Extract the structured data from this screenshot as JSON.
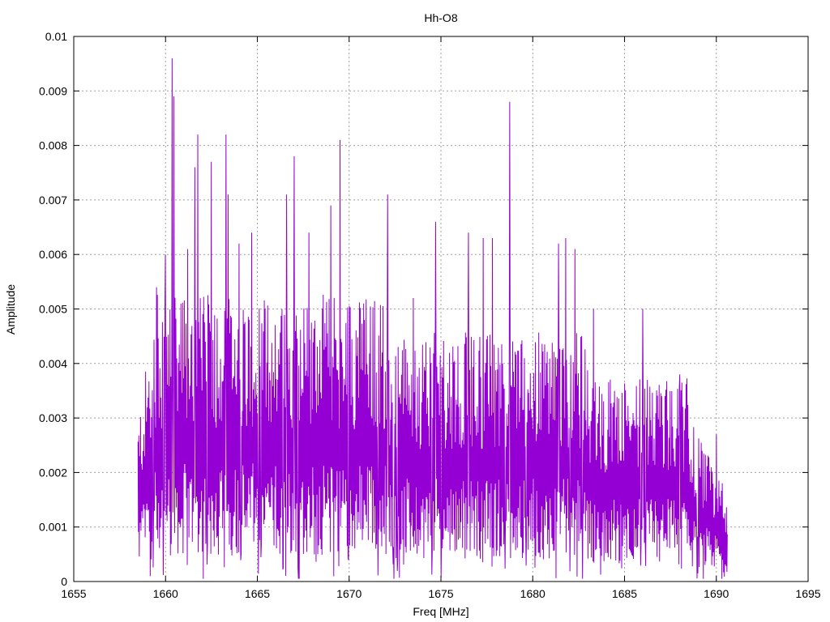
{
  "chart_data": {
    "type": "line",
    "title": "Hh-O8",
    "xlabel": "Freq [MHz]",
    "ylabel": "Amplitude",
    "xlim": [
      1655,
      1695
    ],
    "ylim": [
      0,
      0.01
    ],
    "x_ticks": [
      "1655",
      "1660",
      "1665",
      "1670",
      "1675",
      "1680",
      "1685",
      "1690",
      "1695"
    ],
    "y_ticks": [
      "0",
      "0.001",
      "0.002",
      "0.003",
      "0.004",
      "0.005",
      "0.006",
      "0.007",
      "0.008",
      "0.009",
      "0.01"
    ],
    "grid": true,
    "series": [
      {
        "color": "#9400d3",
        "x_range": [
          1658.5,
          1690.6
        ],
        "peaks": [
          {
            "x": 1658.6,
            "y": 0.0023
          },
          {
            "x": 1659.5,
            "y": 0.0054
          },
          {
            "x": 1660.0,
            "y": 0.006
          },
          {
            "x": 1660.35,
            "y": 0.0096
          },
          {
            "x": 1660.45,
            "y": 0.0089
          },
          {
            "x": 1661.2,
            "y": 0.0061
          },
          {
            "x": 1661.6,
            "y": 0.0076
          },
          {
            "x": 1661.75,
            "y": 0.0082
          },
          {
            "x": 1662.5,
            "y": 0.0077
          },
          {
            "x": 1663.3,
            "y": 0.0082
          },
          {
            "x": 1663.4,
            "y": 0.0071
          },
          {
            "x": 1664.0,
            "y": 0.0062
          },
          {
            "x": 1664.7,
            "y": 0.0064
          },
          {
            "x": 1666.6,
            "y": 0.0071
          },
          {
            "x": 1667.0,
            "y": 0.0078
          },
          {
            "x": 1667.8,
            "y": 0.0064
          },
          {
            "x": 1669.0,
            "y": 0.0069
          },
          {
            "x": 1669.5,
            "y": 0.0081
          },
          {
            "x": 1670.8,
            "y": 0.0051
          },
          {
            "x": 1672.1,
            "y": 0.0071
          },
          {
            "x": 1673.5,
            "y": 0.0052
          },
          {
            "x": 1674.7,
            "y": 0.0066
          },
          {
            "x": 1676.5,
            "y": 0.0064
          },
          {
            "x": 1677.3,
            "y": 0.0063
          },
          {
            "x": 1677.8,
            "y": 0.0063
          },
          {
            "x": 1678.75,
            "y": 0.0088
          },
          {
            "x": 1681.4,
            "y": 0.0062
          },
          {
            "x": 1681.8,
            "y": 0.0063
          },
          {
            "x": 1682.3,
            "y": 0.0061
          },
          {
            "x": 1683.3,
            "y": 0.005
          },
          {
            "x": 1686.0,
            "y": 0.005
          },
          {
            "x": 1688.0,
            "y": 0.0038
          },
          {
            "x": 1690.0,
            "y": 0.0027
          }
        ]
      }
    ]
  }
}
